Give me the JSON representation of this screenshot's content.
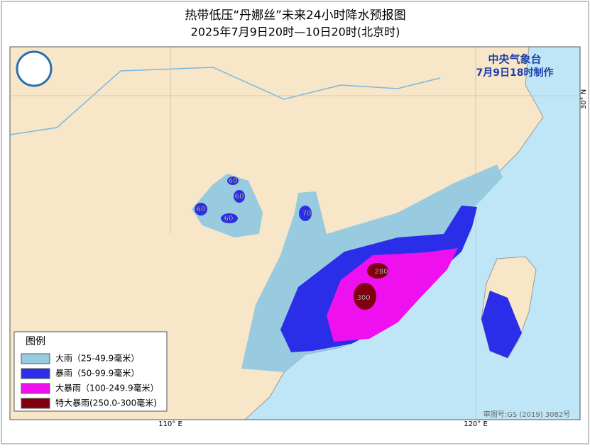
{
  "title": "热带低压“丹娜丝”未来24小时降水预报图",
  "subtitle": "2025年7月9日20时—10日20时(北京时)",
  "agency": "中央气象台",
  "issued": "7月9日18时制作",
  "legend": {
    "title": "图例",
    "items": [
      {
        "name": "大雨（25-49.9毫米）",
        "color": "#98cbe0"
      },
      {
        "name": "暴雨（50-99.9毫米）",
        "color": "#2a2ee8"
      },
      {
        "name": "大暴雨（100-249.9毫米）",
        "color": "#ef10ef"
      },
      {
        "name": "特大暴雨(250.0-300毫米)",
        "color": "#800010"
      }
    ]
  },
  "map_labels": [
    60,
    60,
    60,
    60,
    70,
    280,
    300
  ],
  "coordinates": {
    "lat": "30° N",
    "lon1": "110° E",
    "lon2": "120° E"
  },
  "approval": "审图号:GS (2019) 3082号"
}
